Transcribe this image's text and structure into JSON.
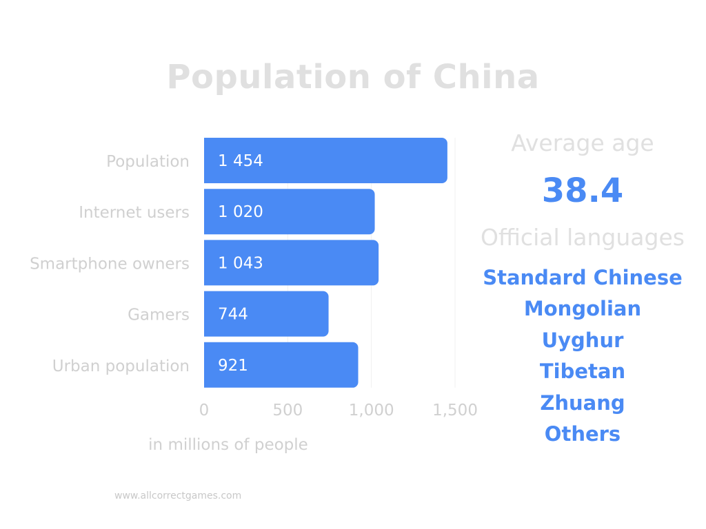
{
  "title": "Population of China",
  "chart_data": {
    "type": "bar",
    "orientation": "horizontal",
    "categories": [
      "Population",
      "Internet users",
      "Smartphone owners",
      "Gamers",
      "Urban population"
    ],
    "values": [
      1454,
      1020,
      1043,
      744,
      921
    ],
    "value_labels": [
      "1 454",
      "1 020",
      "1 043",
      "744",
      "921"
    ],
    "xticks": [
      0,
      500,
      1000,
      1500
    ],
    "xtick_labels": [
      "0",
      "500",
      "1,000",
      "1,500"
    ],
    "xlim": [
      0,
      1500
    ],
    "xlabel": "in millions of people",
    "ylabel": "",
    "grid": true,
    "bar_color": "#4a8af4"
  },
  "side_panel": {
    "average_age_label": "Average age",
    "average_age_value": "38.4",
    "official_languages_label": "Official languages",
    "languages": [
      "Standard Chinese",
      "Mongolian",
      "Uyghur",
      "Tibetan",
      "Zhuang",
      "Others"
    ]
  },
  "footer": "www.allcorrectgames.com",
  "colors": {
    "accent": "#4a8af4",
    "muted_text": "#d0d0d0",
    "title": "#e0e0e0"
  }
}
